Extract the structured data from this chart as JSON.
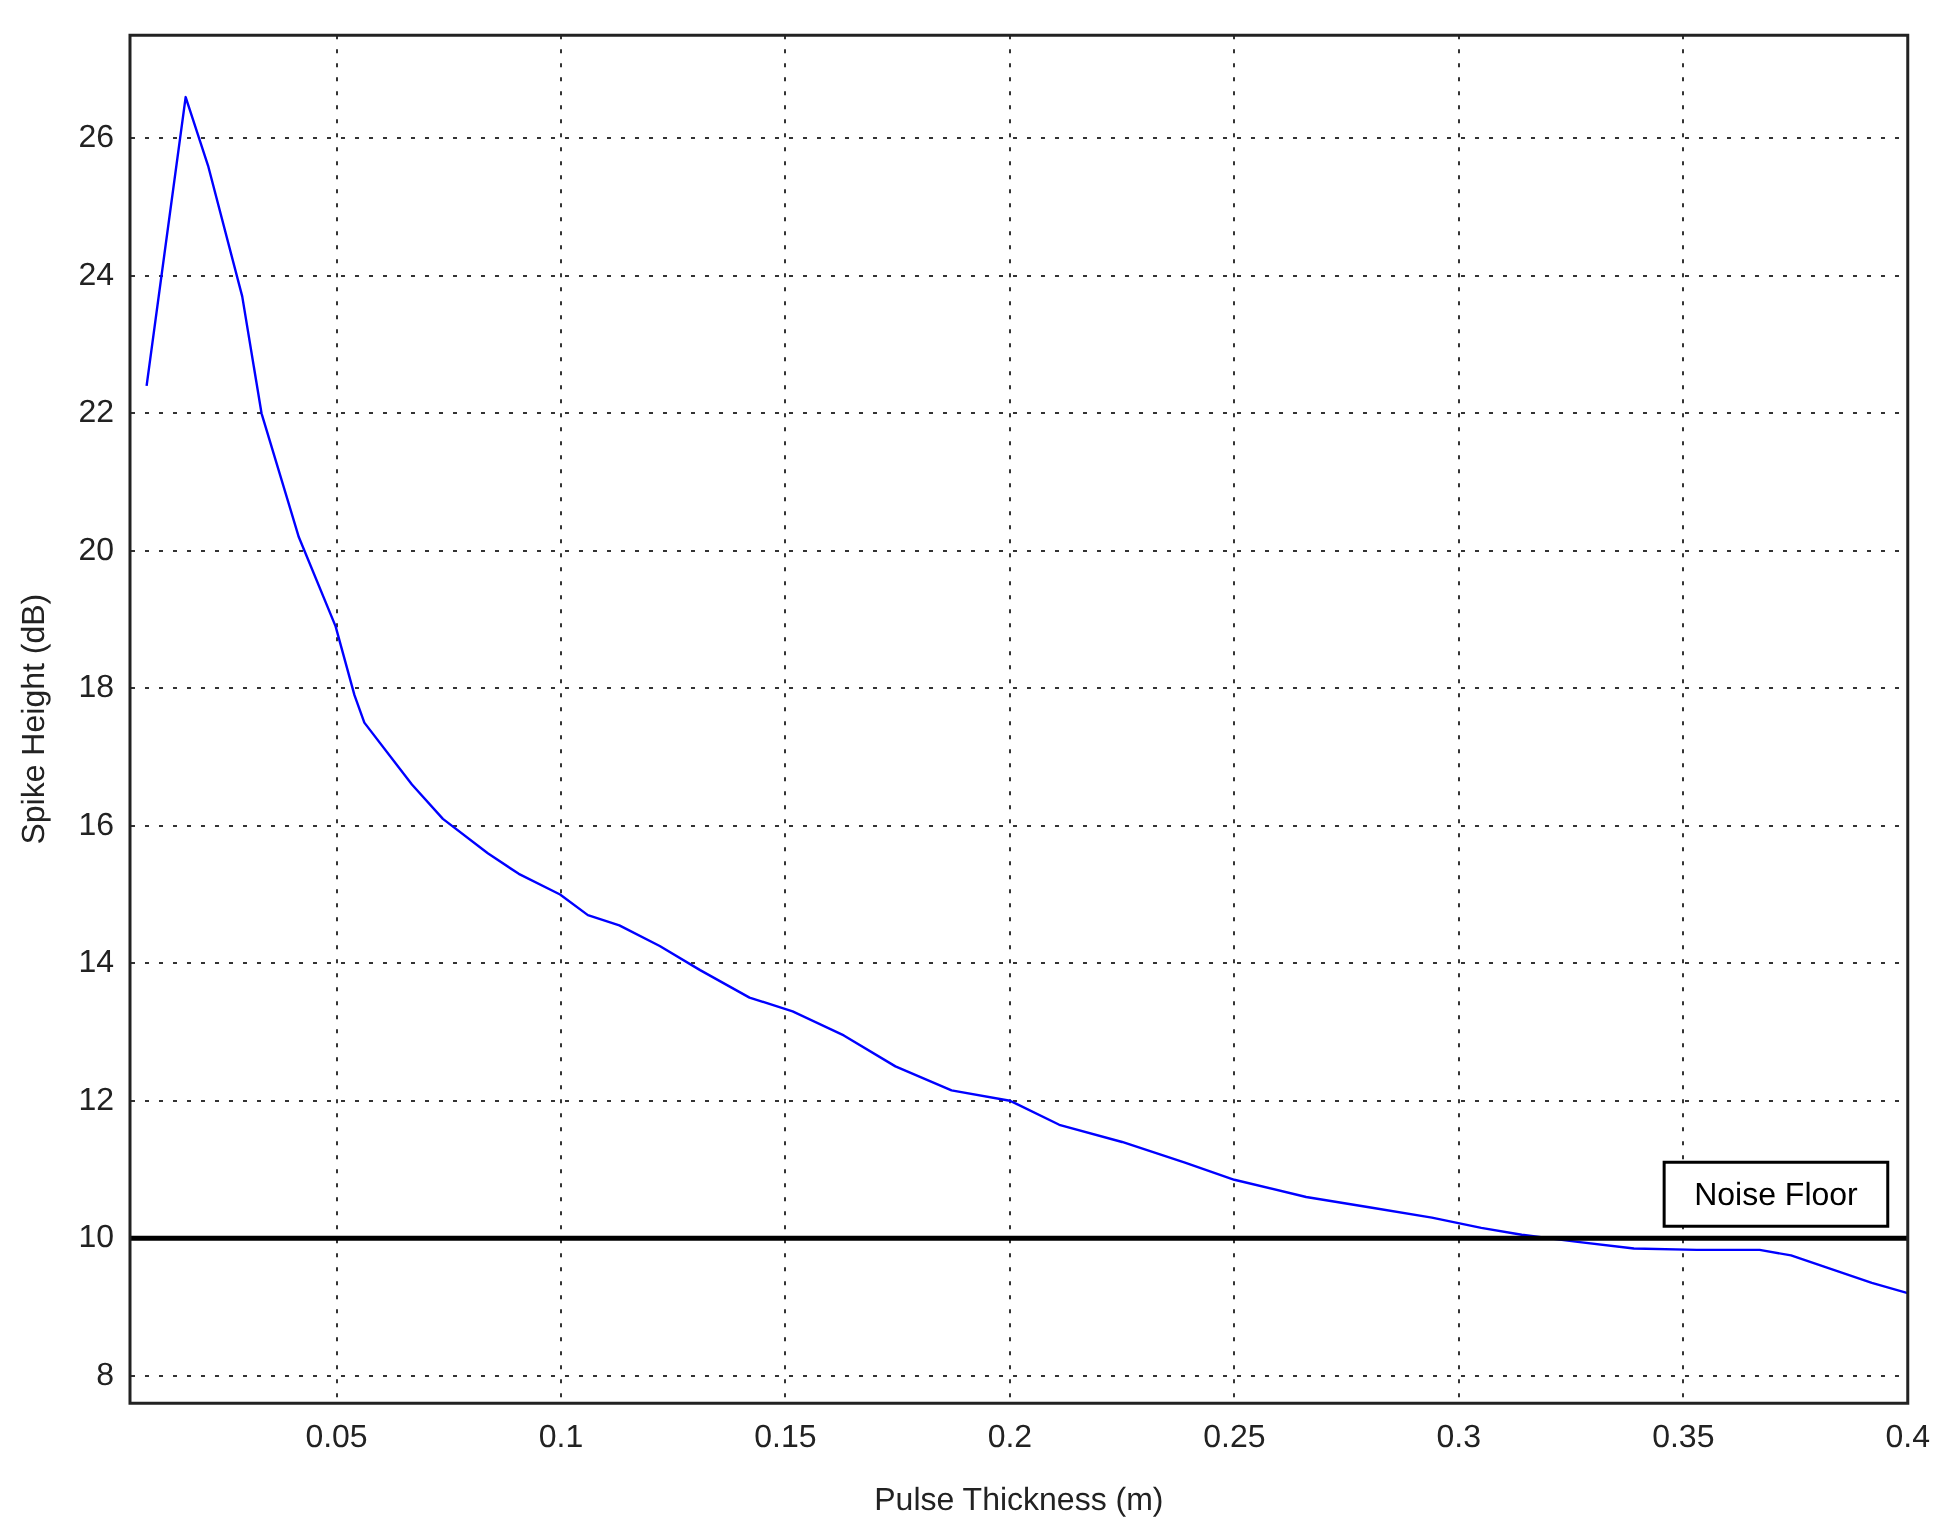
{
  "chart_data": {
    "type": "line",
    "xlabel": "Pulse Thickness (m)",
    "ylabel": "Spike Height (dB)",
    "xlim": [
      0.004,
      0.4
    ],
    "xticks": [
      0.05,
      0.1,
      0.15,
      0.2,
      0.25,
      0.3,
      0.35,
      0.4
    ],
    "ylim": [
      7.6,
      27.5
    ],
    "yticks": [
      8,
      10,
      12,
      14,
      16,
      18,
      20,
      22,
      24,
      26
    ],
    "grid": true,
    "legend": false,
    "marker": "none",
    "line_style": "solid",
    "series": [
      {
        "color": "#0000ff",
        "x": [
          0.0077,
          0.0164,
          0.0214,
          0.029,
          0.0333,
          0.0416,
          0.0498,
          0.054,
          0.0562,
          0.0668,
          0.0737,
          0.0837,
          0.0906,
          0.0998,
          0.106,
          0.113,
          0.122,
          0.131,
          0.142,
          0.1516,
          0.163,
          0.1745,
          0.187,
          0.2,
          0.211,
          0.225,
          0.239,
          0.25,
          0.266,
          0.28,
          0.294,
          0.305,
          0.314,
          0.326,
          0.339,
          0.353,
          0.367,
          0.374,
          0.383,
          0.392,
          0.4
        ],
        "values": [
          22.4,
          26.6,
          25.6,
          23.7,
          22.0,
          20.2,
          18.9,
          17.9,
          17.5,
          16.6,
          16.1,
          15.6,
          15.3,
          15.0,
          14.7,
          14.55,
          14.25,
          13.9,
          13.5,
          13.3,
          12.95,
          12.5,
          12.15,
          12.0,
          11.65,
          11.4,
          11.1,
          10.85,
          10.6,
          10.45,
          10.3,
          10.15,
          10.05,
          9.95,
          9.85,
          9.83,
          9.83,
          9.75,
          9.55,
          9.35,
          9.2
        ]
      }
    ],
    "ref_lines": [
      {
        "axis": "y",
        "value": 10,
        "label": "Noise Floor",
        "color": "#000000"
      }
    ]
  }
}
